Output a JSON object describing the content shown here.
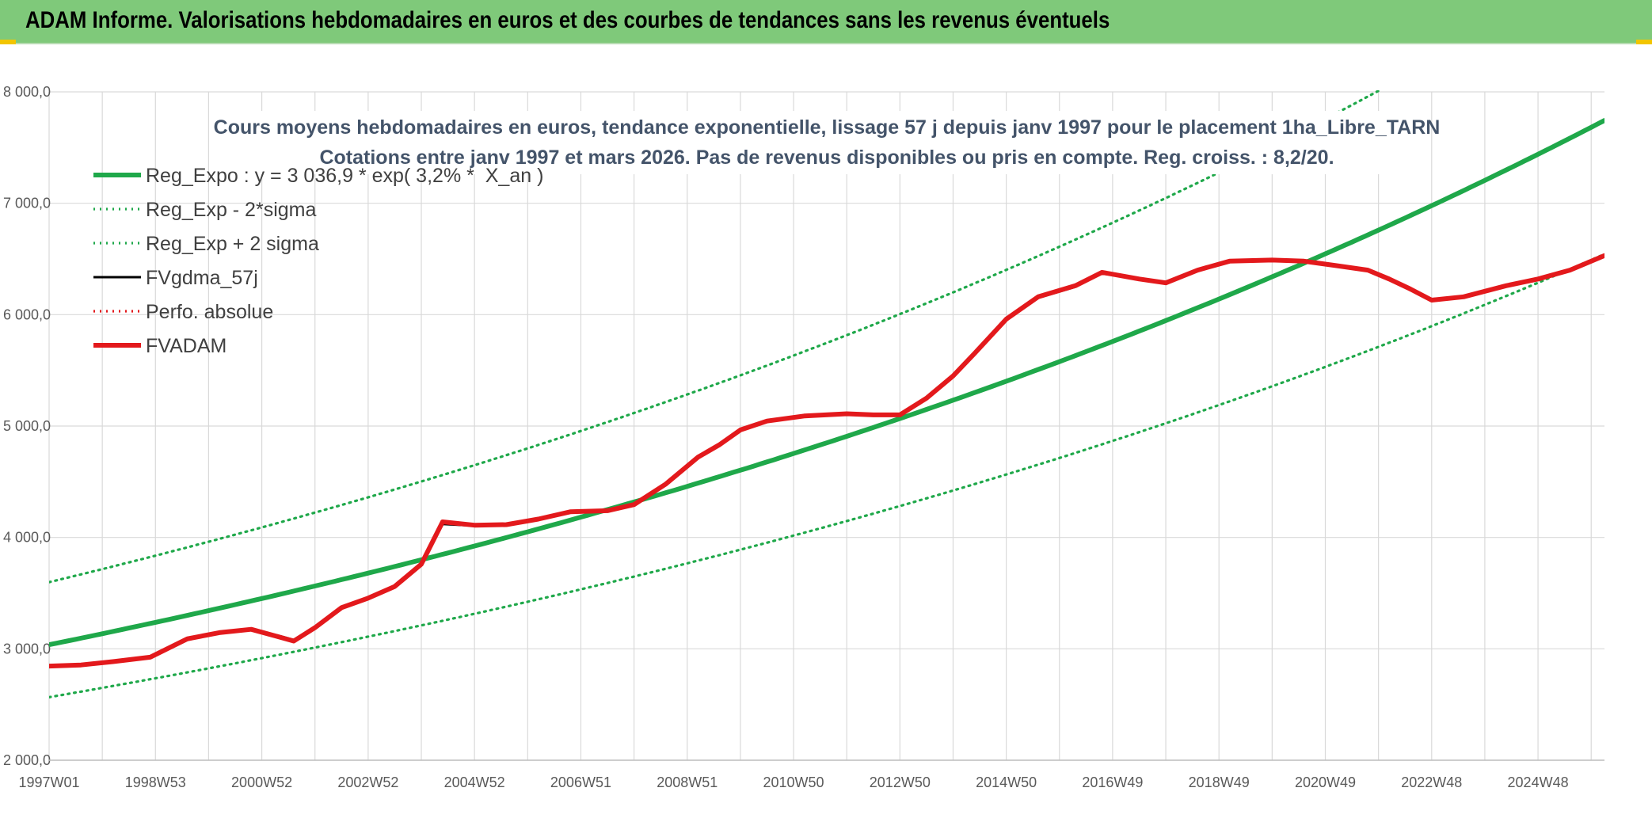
{
  "header": {
    "title": "ADAM Informe. Valorisations hebdomadaires en euros et des courbes de tendances sans les revenus éventuels"
  },
  "chart_data": {
    "type": "line",
    "title_line1": "Cours moyens hebdomadaires en euros, tendance exponentielle, lissage 57 j depuis janv 1997 pour le placement 1ha_Libre_TARN",
    "title_line2": "Cotations entre janv 1997 et mars 2026. Pas de revenus disponibles ou pris en compte. Reg. croiss. : 8,2/20.",
    "xlabel": "",
    "ylabel": "",
    "ylim": [
      2000,
      8000
    ],
    "xlim": [
      1997.0,
      2026.25
    ],
    "grid": true,
    "legend_position": "top-left",
    "y_ticks": [
      {
        "value": 2000,
        "label": "2 000,0"
      },
      {
        "value": 3000,
        "label": "3 000,0"
      },
      {
        "value": 4000,
        "label": "4 000,0"
      },
      {
        "value": 5000,
        "label": "5 000,0"
      },
      {
        "value": 6000,
        "label": "6 000,0"
      },
      {
        "value": 7000,
        "label": "7 000,0"
      },
      {
        "value": 8000,
        "label": "8 000,0"
      }
    ],
    "x_ticks": [
      {
        "value": 1997.0,
        "label": "1997W01"
      },
      {
        "value": 1999.0,
        "label": "1998W53"
      },
      {
        "value": 2001.0,
        "label": "2000W52"
      },
      {
        "value": 2003.0,
        "label": "2002W52"
      },
      {
        "value": 2005.0,
        "label": "2004W52"
      },
      {
        "value": 2007.0,
        "label": "2006W51"
      },
      {
        "value": 2009.0,
        "label": "2008W51"
      },
      {
        "value": 2011.0,
        "label": "2010W50"
      },
      {
        "value": 2013.0,
        "label": "2012W50"
      },
      {
        "value": 2015.0,
        "label": "2014W50"
      },
      {
        "value": 2017.0,
        "label": "2016W49"
      },
      {
        "value": 2019.0,
        "label": "2018W49"
      },
      {
        "value": 2021.0,
        "label": "2020W49"
      },
      {
        "value": 2023.0,
        "label": "2022W48"
      },
      {
        "value": 2025.0,
        "label": "2024W48"
      }
    ],
    "series": [
      {
        "name": "Reg_Expo : y = 3 036,9 * exp( 3,2% *  X_an )",
        "kind": "regression",
        "color": "#1fa84a",
        "style": "solid-thick",
        "base": 3036.9,
        "rate": 0.032,
        "multiplier": 1.0
      },
      {
        "name": "Reg_Exp - 2*sigma",
        "kind": "regression",
        "color": "#1fa84a",
        "style": "dotted",
        "base": 3036.9,
        "rate": 0.032,
        "multiplier": 0.845
      },
      {
        "name": "Reg_Exp + 2 sigma",
        "kind": "regression",
        "color": "#1fa84a",
        "style": "dotted",
        "base": 3036.9,
        "rate": 0.032,
        "multiplier": 1.185
      },
      {
        "name": "FVgdma_57j",
        "kind": "points",
        "color": "#000000",
        "style": "solid",
        "x": [
          1997.0,
          1997.6,
          1998.2,
          1998.9,
          1999.6,
          2000.2,
          2000.8,
          2001.3,
          2001.6,
          2002.0,
          2002.5,
          2003.0,
          2003.5,
          2004.0,
          2004.4,
          2005.0,
          2005.6,
          2006.2,
          2006.8,
          2007.5,
          2008.0,
          2008.6,
          2009.2,
          2009.6,
          2010.0,
          2010.5,
          2011.2,
          2012.0,
          2012.5,
          2013.0,
          2013.5,
          2014.0,
          2014.4,
          2015.0,
          2015.6,
          2016.3,
          2016.8,
          2017.5,
          2018.0,
          2018.6,
          2019.2,
          2020.0,
          2020.6,
          2021.2,
          2021.8,
          2022.2,
          2022.6,
          2023.0,
          2023.6,
          2024.4,
          2025.0,
          2025.6,
          2026.25
        ],
        "values": [
          2845,
          2850,
          2880,
          2920,
          3080,
          3140,
          3175,
          3120,
          3080,
          3200,
          3380,
          3460,
          3560,
          3750,
          4120,
          4105,
          4110,
          4160,
          4230,
          4240,
          4290,
          4480,
          4720,
          4830,
          4960,
          5040,
          5090,
          5110,
          5100,
          5110,
          5250,
          5450,
          5650,
          5950,
          6150,
          6250,
          6370,
          6320,
          6290,
          6400,
          6480,
          6490,
          6480,
          6440,
          6400,
          6320,
          6230,
          6140,
          6160,
          6260,
          6320,
          6400,
          6530
        ]
      },
      {
        "name": "Perfo. absolue",
        "kind": "legend-only",
        "color": "#e3191c",
        "style": "dotted"
      },
      {
        "name": "FVADAM",
        "kind": "points",
        "color": "#e3191c",
        "style": "solid-thick",
        "x": [
          1997.0,
          1997.6,
          1998.2,
          1998.9,
          1999.6,
          2000.2,
          2000.8,
          2001.3,
          2001.6,
          2002.0,
          2002.5,
          2003.0,
          2003.5,
          2004.0,
          2004.4,
          2005.0,
          2005.6,
          2006.2,
          2006.8,
          2007.5,
          2008.0,
          2008.6,
          2009.2,
          2009.6,
          2010.0,
          2010.5,
          2011.2,
          2012.0,
          2012.5,
          2013.0,
          2013.5,
          2014.0,
          2014.4,
          2015.0,
          2015.6,
          2016.3,
          2016.8,
          2017.5,
          2018.0,
          2018.6,
          2019.2,
          2020.0,
          2020.6,
          2021.2,
          2021.8,
          2022.2,
          2022.6,
          2023.0,
          2023.6,
          2024.4,
          2025.0,
          2025.6,
          2026.25
        ],
        "values": [
          2845,
          2855,
          2885,
          2925,
          3090,
          3145,
          3175,
          3110,
          3070,
          3190,
          3370,
          3455,
          3560,
          3760,
          4140,
          4110,
          4115,
          4165,
          4230,
          4240,
          4295,
          4480,
          4720,
          4830,
          4965,
          5045,
          5090,
          5110,
          5100,
          5100,
          5250,
          5450,
          5650,
          5960,
          6160,
          6260,
          6380,
          6320,
          6285,
          6400,
          6480,
          6490,
          6480,
          6440,
          6400,
          6320,
          6230,
          6130,
          6160,
          6260,
          6320,
          6400,
          6530
        ]
      }
    ]
  }
}
